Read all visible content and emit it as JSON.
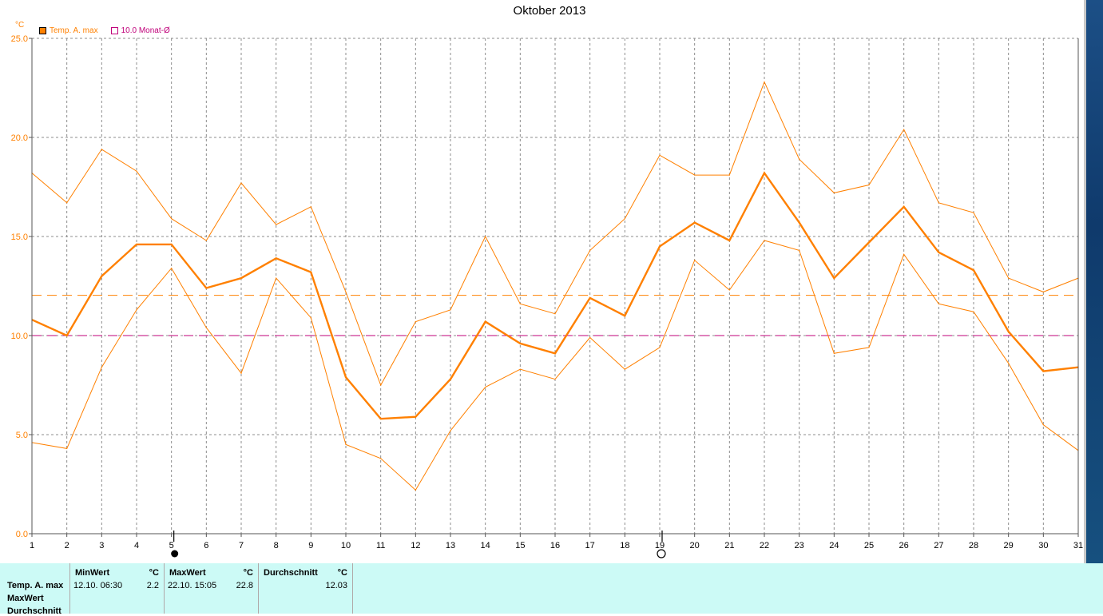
{
  "chart_data": {
    "type": "line",
    "title": "Oktober 2013",
    "y_unit": "°C",
    "x": [
      1,
      2,
      3,
      4,
      5,
      6,
      7,
      8,
      9,
      10,
      11,
      12,
      13,
      14,
      15,
      16,
      17,
      18,
      19,
      20,
      21,
      22,
      23,
      24,
      25,
      26,
      27,
      28,
      29,
      30,
      31
    ],
    "x_tick_labels": [
      "1",
      "2",
      "3",
      "4",
      "5",
      "6",
      "7",
      "8",
      "9",
      "10",
      "11",
      "12",
      "13",
      "14",
      "15",
      "16",
      "17",
      "18",
      "19",
      "20",
      "21",
      "22",
      "23",
      "24",
      "25",
      "26",
      "27",
      "28",
      "29",
      "30",
      "31"
    ],
    "ylim": [
      0,
      25
    ],
    "y_ticks": [
      0,
      5,
      10,
      15,
      20,
      25
    ],
    "y_tick_labels": [
      "0.0",
      "5.0",
      "10.0",
      "15.0",
      "20.0",
      "25.0"
    ],
    "grid": true,
    "legend_placement": "top-left",
    "series": [
      {
        "name": "Temp. A. max",
        "role": "main",
        "color": "#ff8000",
        "values": [
          10.8,
          10.0,
          13.0,
          14.6,
          14.6,
          12.4,
          12.9,
          13.9,
          13.2,
          7.9,
          5.8,
          5.9,
          7.8,
          10.7,
          9.6,
          9.1,
          11.9,
          11.0,
          14.5,
          15.7,
          14.8,
          18.2,
          15.7,
          12.9,
          14.7,
          16.5,
          14.2,
          13.3,
          10.2,
          8.2,
          8.4
        ]
      },
      {
        "role": "upper-envelope",
        "color": "#ff8000",
        "values": [
          18.2,
          16.7,
          19.4,
          18.3,
          15.9,
          14.8,
          17.7,
          15.6,
          16.5,
          12.2,
          7.5,
          10.7,
          11.3,
          15.0,
          11.6,
          11.1,
          14.3,
          15.9,
          19.1,
          18.1,
          18.1,
          22.8,
          18.9,
          17.2,
          17.6,
          20.4,
          16.7,
          16.2,
          12.9,
          12.2,
          12.9
        ]
      },
      {
        "role": "lower-envelope",
        "color": "#ff8000",
        "values": [
          4.6,
          4.3,
          8.4,
          11.3,
          13.4,
          10.4,
          8.1,
          12.9,
          10.9,
          4.5,
          3.8,
          2.2,
          5.2,
          7.4,
          8.3,
          7.8,
          9.9,
          8.3,
          9.4,
          13.8,
          12.3,
          14.8,
          14.3,
          9.1,
          9.4,
          14.1,
          11.6,
          11.2,
          8.6,
          5.5,
          4.2
        ]
      }
    ],
    "reference_lines": [
      {
        "value": 12.03,
        "color": "#ff8000"
      },
      {
        "name": "10.0 Monat-Ø",
        "value": 10.0,
        "color": "#c0007a"
      }
    ],
    "moon_phases": [
      {
        "day": 5,
        "phase": "new"
      },
      {
        "day": 19,
        "phase": "full"
      }
    ]
  },
  "legend": [
    {
      "label": "Temp. A. max",
      "color": "#ff8000"
    },
    {
      "label": "10.0 Monat-Ø",
      "color": "#c0007a"
    }
  ],
  "stats": {
    "row_labels": [
      "Temp. A. max",
      "MaxWert",
      "Durchschnitt"
    ],
    "min": {
      "header": "MinWert",
      "unit": "°C",
      "datetime": "12.10.  06:30",
      "value": "2.2"
    },
    "max": {
      "header": "MaxWert",
      "unit": "°C",
      "datetime": "22.10.  15:05",
      "value": "22.8"
    },
    "avg": {
      "header": "Durchschnitt",
      "unit": "°C",
      "value": "12.03"
    }
  }
}
